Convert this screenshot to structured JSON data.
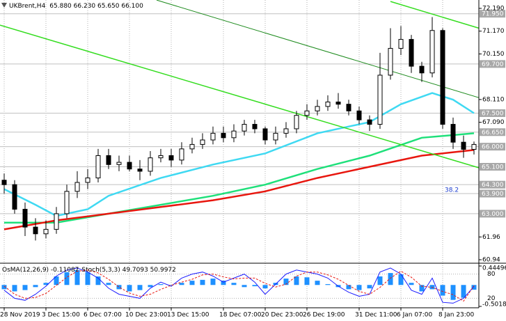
{
  "chart_data": [
    {
      "type": "candlestick",
      "title": "UKBrent,H4",
      "subtitle": "65.880 66.230 65.650 66.100",
      "annotation": "38.2",
      "color": "#000000",
      "open": [
        64.5,
        64.3,
        63.2,
        62.4,
        62.1,
        62.3,
        63.0,
        64.0,
        64.4,
        64.6,
        65.6,
        65.2,
        65.3,
        65.0,
        64.9,
        65.5,
        65.6,
        65.4,
        65.9,
        66.1,
        66.3,
        66.6,
        66.4,
        66.7,
        67.0,
        66.8,
        66.3,
        66.6,
        66.8,
        67.4,
        67.6,
        67.8,
        68.0,
        67.9,
        67.6,
        67.2,
        67.0,
        69.2,
        70.4,
        70.8,
        69.6,
        69.3,
        71.2,
        67.0,
        66.2,
        65.88
      ],
      "high": [
        64.8,
        64.5,
        63.5,
        62.8,
        62.7,
        63.3,
        64.3,
        64.9,
        65.0,
        65.9,
        65.9,
        65.6,
        65.6,
        65.4,
        65.8,
        65.9,
        65.9,
        66.2,
        66.4,
        66.6,
        66.9,
        66.9,
        67.0,
        67.2,
        67.2,
        66.9,
        66.9,
        67.1,
        67.6,
        67.9,
        68.1,
        68.3,
        68.4,
        68.1,
        67.8,
        67.4,
        70.2,
        71.3,
        71.4,
        71.0,
        69.8,
        71.8,
        71.3,
        67.3,
        66.5,
        66.23
      ],
      "low": [
        63.9,
        63.0,
        62.0,
        61.8,
        61.9,
        62.1,
        62.8,
        63.7,
        64.1,
        64.4,
        65.0,
        64.9,
        64.9,
        64.5,
        64.7,
        65.3,
        65.1,
        65.2,
        65.7,
        65.9,
        66.1,
        66.2,
        66.2,
        66.5,
        66.6,
        66.1,
        66.1,
        66.4,
        66.6,
        67.2,
        67.4,
        67.6,
        67.7,
        67.4,
        67.0,
        66.7,
        66.8,
        69.0,
        70.1,
        69.3,
        68.9,
        69.1,
        66.8,
        65.9,
        65.5,
        65.65
      ],
      "close": [
        64.3,
        63.2,
        62.4,
        62.1,
        62.3,
        63.0,
        64.0,
        64.4,
        64.6,
        65.6,
        65.2,
        65.3,
        65.0,
        64.9,
        65.5,
        65.6,
        65.4,
        65.9,
        66.1,
        66.3,
        66.6,
        66.4,
        66.7,
        67.0,
        66.8,
        66.3,
        66.6,
        66.8,
        67.4,
        67.6,
        67.8,
        68.0,
        67.9,
        67.6,
        67.2,
        67.0,
        69.2,
        70.4,
        70.8,
        69.6,
        69.3,
        71.2,
        67.0,
        66.2,
        65.88,
        66.1
      ],
      "ylim": [
        60.94,
        72.19
      ],
      "yticks": [
        {
          "value": 72.19,
          "label": "72.190"
        },
        {
          "value": 71.17,
          "label": "71.170"
        },
        {
          "value": 70.15,
          "label": "70.150"
        },
        {
          "value": 68.11,
          "label": "68.110"
        },
        {
          "value": 67.09,
          "label": "67.090"
        },
        61.96,
        60.94
      ],
      "levels": [
        {
          "value": 71.95,
          "label": "71.950"
        },
        {
          "value": 69.7,
          "label": "69.700"
        },
        {
          "value": 67.5,
          "label": "67.500"
        },
        {
          "value": 66.65,
          "label": "66.650"
        },
        {
          "value": 66.0,
          "label": "66.000"
        },
        {
          "value": 65.1,
          "label": "65.100"
        },
        {
          "value": 64.3,
          "label": "64.300"
        },
        {
          "value": 63.9,
          "label": "63.900"
        },
        {
          "value": 63.0,
          "label": "63.000"
        }
      ],
      "level_color": "#c0c0c0",
      "xticks": [
        {
          "value": 0,
          "label": "28 Nov 2019"
        },
        {
          "value": 4,
          "label": "3 Dec 15:00"
        },
        {
          "value": 8,
          "label": "6 Dec 07:00"
        },
        {
          "value": 12,
          "label": "10 Dec 23:00"
        },
        {
          "value": 16,
          "label": "13 Dec 15:00"
        },
        {
          "value": 21,
          "label": "18 Dec 07:00"
        },
        {
          "value": 25,
          "label": "20 Dec 23:00"
        },
        {
          "value": 29,
          "label": "26 Dec 19:00"
        },
        {
          "value": 34,
          "label": "31 Dec 11:00"
        },
        {
          "value": 38,
          "label": "6 Jan 07:00"
        },
        {
          "value": 42,
          "label": "8 Jan 23:00"
        }
      ],
      "overlays": [
        {
          "color": "#3fd9f2",
          "width": 2.5,
          "x": [
            0,
            3,
            5,
            8,
            10,
            15,
            20,
            25,
            30,
            35,
            38,
            41,
            43,
            45
          ],
          "values": [
            64.1,
            63.4,
            62.9,
            63.2,
            63.8,
            64.6,
            65.2,
            65.7,
            66.6,
            67.1,
            67.9,
            68.4,
            68.1,
            67.5
          ]
        },
        {
          "color": "#1ee07a",
          "width": 2.5,
          "x": [
            0,
            5,
            10,
            15,
            20,
            25,
            30,
            35,
            40,
            45
          ],
          "values": [
            62.6,
            62.6,
            63.0,
            63.4,
            63.8,
            64.3,
            65.0,
            65.6,
            66.4,
            66.6
          ]
        },
        {
          "color": "#e8160e",
          "width": 2.5,
          "x": [
            0,
            5,
            10,
            15,
            20,
            25,
            30,
            35,
            40,
            45
          ],
          "values": [
            62.3,
            62.7,
            63.0,
            63.3,
            63.6,
            64.0,
            64.6,
            65.1,
            65.6,
            65.85
          ]
        },
        {
          "color": "#35dd20",
          "width": 1.5,
          "x": [
            -0.4,
            45.5
          ],
          "values": [
            71.44,
            65.05
          ]
        },
        {
          "color": "#1c8a1c",
          "width": 1,
          "x": [
            14.6,
            45.5
          ],
          "values": [
            72.56,
            68.19
          ]
        },
        {
          "color": "#35dd20",
          "width": 1.5,
          "x": [
            37,
            45.5
          ],
          "values": [
            72.5,
            71.3
          ]
        }
      ]
    },
    {
      "type": "bar",
      "title": "OsMA(12,26,9) -0.11087",
      "subtitle": "Stoch(5,3,3) 49.7093 50.9972",
      "color": "#1e90ff",
      "values": [
        -0.1,
        -0.15,
        -0.12,
        -0.05,
        0.05,
        0.2,
        0.3,
        0.35,
        0.3,
        0.2,
        0.05,
        -0.1,
        -0.15,
        -0.12,
        -0.05,
        0.02,
        0.0,
        0.05,
        0.1,
        0.12,
        0.15,
        0.1,
        0.05,
        -0.05,
        -0.03,
        -0.08,
        0.05,
        0.15,
        0.2,
        0.18,
        0.1,
        0.02,
        -0.05,
        -0.1,
        -0.12,
        -0.08,
        0.2,
        0.28,
        0.25,
        0.05,
        -0.15,
        -0.1,
        -0.25,
        -0.35,
        -0.3,
        -0.11087
      ],
      "ylim": [
        -0.50181,
        0.44496
      ],
      "yticks": [
        0.44496,
        -0.50181
      ],
      "y2lim": [
        0,
        100
      ],
      "y2ticks": [
        80,
        20
      ],
      "series": [
        {
          "color": "#1a1aff",
          "axis": "y2",
          "values": [
            40,
            20,
            15,
            30,
            50,
            75,
            90,
            95,
            85,
            70,
            45,
            30,
            25,
            20,
            45,
            60,
            50,
            70,
            80,
            85,
            75,
            60,
            70,
            80,
            60,
            30,
            55,
            80,
            90,
            85,
            80,
            70,
            50,
            35,
            25,
            30,
            85,
            95,
            80,
            40,
            30,
            70,
            10,
            8,
            20,
            49.7093
          ]
        },
        {
          "color": "#e8160e",
          "axis": "y2",
          "dashed": true,
          "values": [
            50,
            30,
            20,
            22,
            32,
            52,
            72,
            87,
            90,
            83,
            67,
            48,
            33,
            25,
            30,
            42,
            52,
            60,
            67,
            78,
            80,
            73,
            68,
            70,
            70,
            57,
            48,
            55,
            75,
            85,
            85,
            78,
            67,
            52,
            37,
            30,
            47,
            70,
            87,
            72,
            50,
            47,
            37,
            29,
            13,
            50.9972
          ]
        }
      ]
    }
  ]
}
